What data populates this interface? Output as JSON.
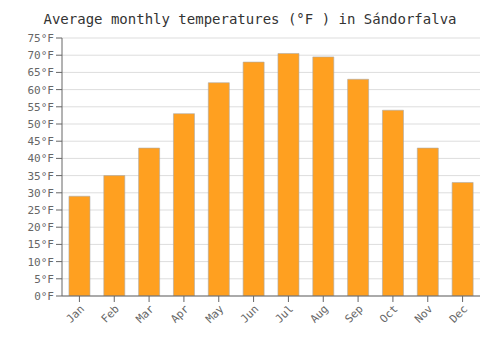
{
  "chart_data": {
    "type": "bar",
    "title": "Average monthly temperatures (°F ) in Sándorfalva",
    "categories": [
      "Jan",
      "Feb",
      "Mar",
      "Apr",
      "May",
      "Jun",
      "Jul",
      "Aug",
      "Sep",
      "Oct",
      "Nov",
      "Dec"
    ],
    "values": [
      29,
      35,
      43,
      53,
      62,
      68,
      70.5,
      69.5,
      63,
      54,
      43,
      33
    ],
    "color": "#FFA020",
    "ylim": [
      0,
      75
    ],
    "yticks": [
      {
        "value": 0,
        "label": "0°F"
      },
      {
        "value": 5,
        "label": "5°F"
      },
      {
        "value": 10,
        "label": "10°F"
      },
      {
        "value": 15,
        "label": "15°F"
      },
      {
        "value": 20,
        "label": "20°F"
      },
      {
        "value": 25,
        "label": "25°F"
      },
      {
        "value": 30,
        "label": "30°F"
      },
      {
        "value": 35,
        "label": "35°F"
      },
      {
        "value": 40,
        "label": "40°F"
      },
      {
        "value": 45,
        "label": "45°F"
      },
      {
        "value": 50,
        "label": "50°F"
      },
      {
        "value": 55,
        "label": "55°F"
      },
      {
        "value": 60,
        "label": "60°F"
      },
      {
        "value": 65,
        "label": "65°F"
      },
      {
        "value": 70,
        "label": "70°F"
      },
      {
        "value": 75,
        "label": "75°F"
      }
    ],
    "grid": true
  }
}
